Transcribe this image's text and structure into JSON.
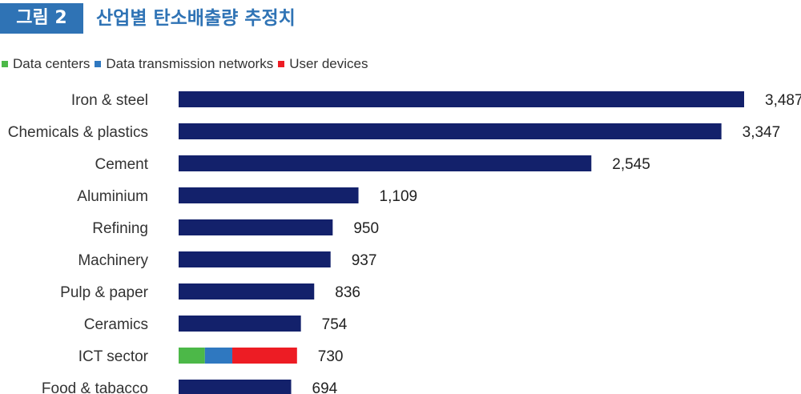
{
  "figure": {
    "badge": "그림 2",
    "title": "산업별 탄소배출량 추정치"
  },
  "colors": {
    "bar": "#13216b",
    "badge": "#2f73b5"
  },
  "chart_data": {
    "type": "bar",
    "orientation": "horizontal",
    "categories": [
      "Iron & steel",
      "Chemicals & plastics",
      "Cement",
      "Aluminium",
      "Refining",
      "Machinery",
      "Pulp & paper",
      "Ceramics",
      "ICT sector",
      "Food & tabacco"
    ],
    "values": [
      3487,
      3347,
      2545,
      1109,
      950,
      937,
      836,
      754,
      730,
      694
    ],
    "value_labels": [
      "3,487",
      "3,347",
      "2,545",
      "1,109",
      "950",
      "937",
      "836",
      "754",
      "730",
      "694"
    ],
    "xlim": [
      0,
      3487
    ],
    "grid": false,
    "legend": {
      "position": "top-left",
      "entries": [
        {
          "name": "Data centers",
          "color": "#4cb848"
        },
        {
          "name": "Data transmission networks",
          "color": "#2f78c0"
        },
        {
          "name": "User devices",
          "color": "#ed1c24"
        }
      ]
    },
    "stacked": {
      "category": "ICT sector",
      "segments": [
        {
          "name": "Data centers",
          "value": 162,
          "color": "#4cb848"
        },
        {
          "name": "Data transmission networks",
          "value": 169,
          "color": "#2f78c0"
        },
        {
          "name": "User devices",
          "value": 399,
          "color": "#ed1c24"
        }
      ]
    }
  }
}
